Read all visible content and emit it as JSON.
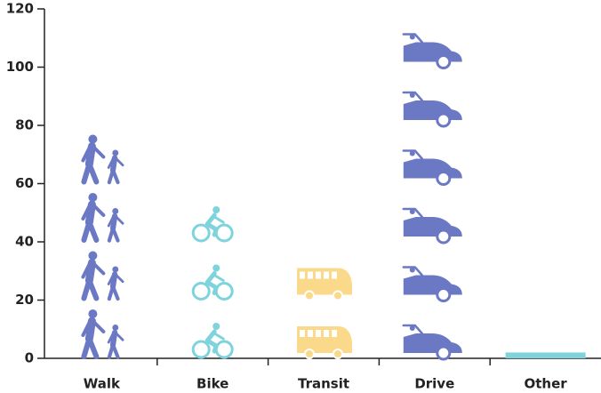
{
  "chart_data": {
    "type": "pictograph",
    "categories": [
      "Walk",
      "Bike",
      "Transit",
      "Drive",
      "Other"
    ],
    "values": [
      78,
      52,
      35,
      112,
      2
    ],
    "colors": [
      "#6b78c4",
      "#7fd3dc",
      "#fbd98a",
      "#6b78c4",
      "#7fd3dc"
    ],
    "ylim": [
      0,
      120
    ],
    "yticks": [
      0,
      20,
      40,
      60,
      80,
      100,
      120
    ]
  }
}
